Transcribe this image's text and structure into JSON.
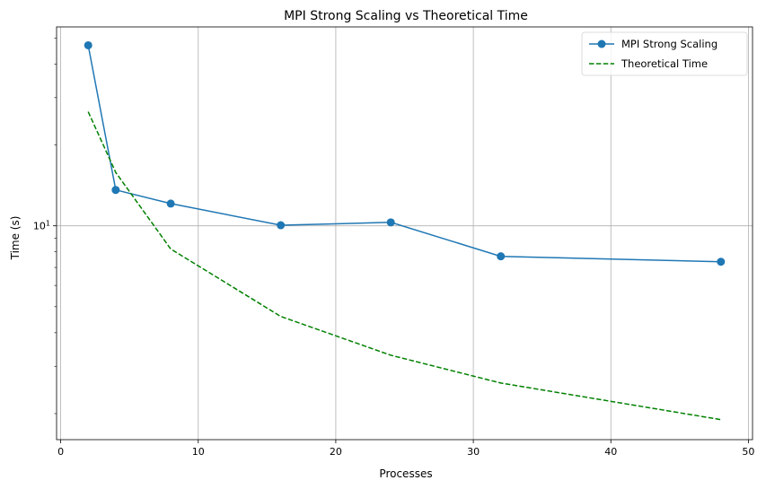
{
  "chart_data": {
    "type": "line",
    "title": "MPI Strong Scaling vs Theoretical Time",
    "xlabel": "Processes",
    "ylabel": "Time (s)",
    "xlim": [
      -0.3,
      50.3
    ],
    "ylim": [
      1.6,
      55
    ],
    "yscale": "log",
    "grid": true,
    "legend": "top-right",
    "x_ticks": [
      0,
      10,
      20,
      30,
      40,
      50
    ],
    "series": [
      {
        "name": "MPI Strong Scaling",
        "color": "#1f77b4",
        "style": "solid",
        "marker": "circle",
        "x": [
          2,
          4,
          8,
          16,
          24,
          32,
          48
        ],
        "y": [
          47,
          13.6,
          12.1,
          10.05,
          10.3,
          7.7,
          7.35
        ]
      },
      {
        "name": "Theoretical Time",
        "color": "#008000",
        "style": "dashed",
        "marker": "none",
        "x": [
          2,
          4,
          8,
          16,
          24,
          32,
          48
        ],
        "y": [
          26.6,
          15.8,
          8.2,
          4.6,
          3.3,
          2.6,
          1.9
        ]
      }
    ]
  }
}
